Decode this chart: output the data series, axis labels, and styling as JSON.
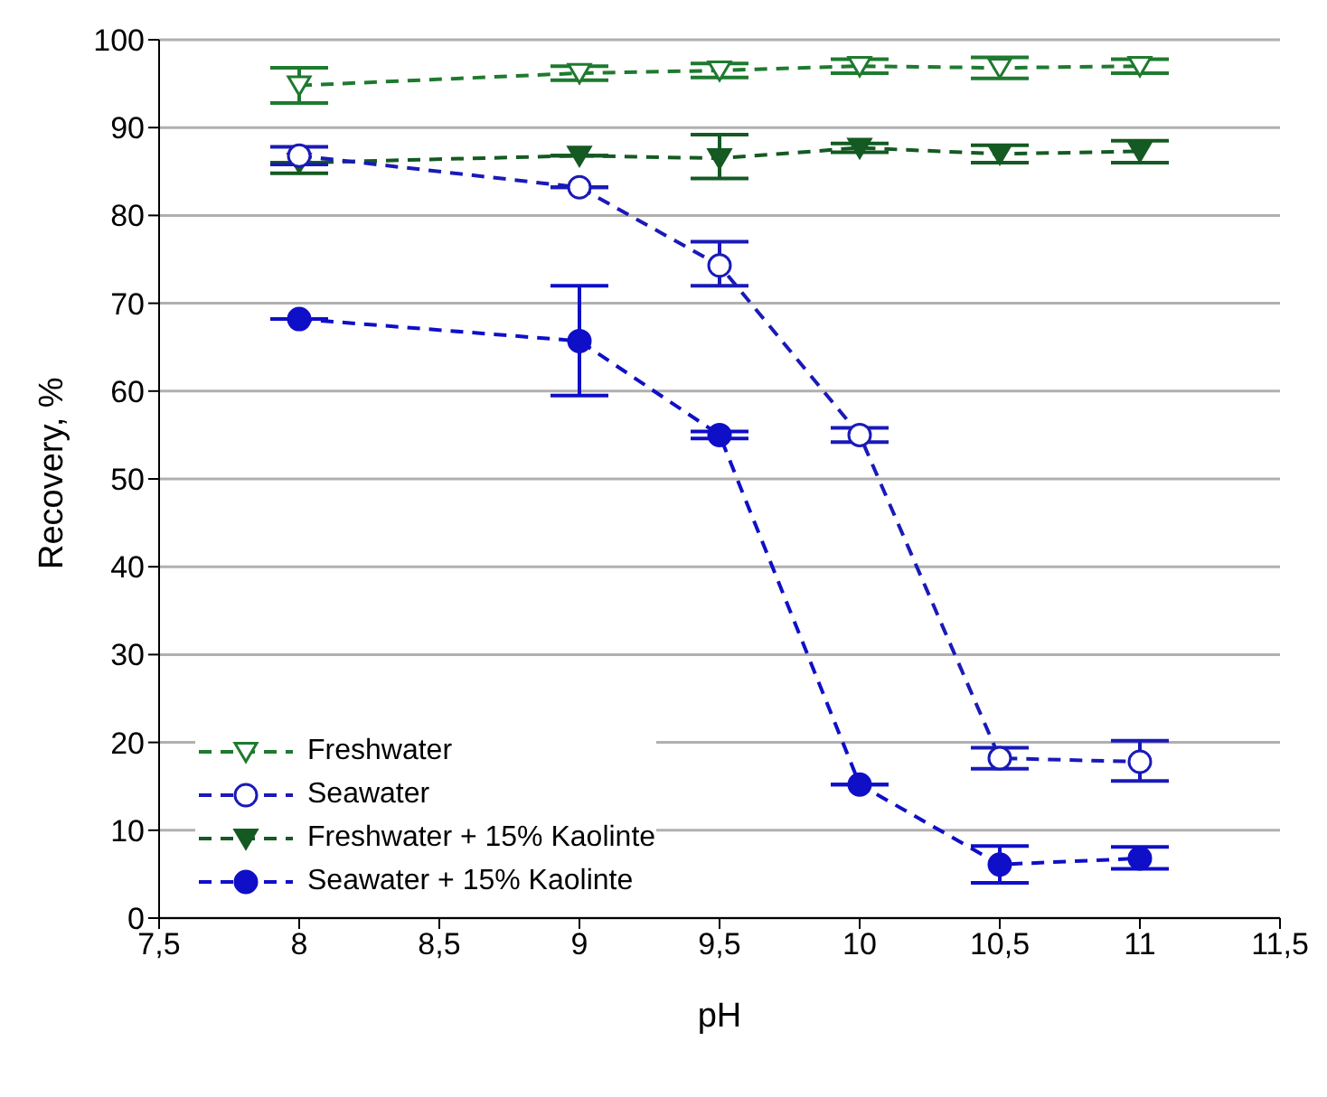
{
  "chart_data": {
    "type": "line",
    "xlabel": "pH",
    "ylabel": "Recovery, %",
    "x": [
      8,
      9,
      9.5,
      10,
      10.5,
      11
    ],
    "xlim": [
      7.5,
      11.5
    ],
    "xticks": [
      {
        "value": 7.5,
        "label": "7,5"
      },
      8,
      {
        "value": 8.5,
        "label": "8,5"
      },
      9,
      {
        "value": 9.5,
        "label": "9,5"
      },
      10,
      {
        "value": 10.5,
        "label": "10,5"
      },
      11,
      {
        "value": 11.5,
        "label": "11,5"
      }
    ],
    "ylim": [
      0,
      100
    ],
    "yticks": [
      0,
      10,
      20,
      30,
      40,
      50,
      60,
      70,
      80,
      90,
      100
    ],
    "grid": "y",
    "legend": "bottom left",
    "line_style": "dashed",
    "series": [
      {
        "name": "Freshwater",
        "color": "#1e7a2e",
        "marker": "triangle",
        "values": [
          94.8,
          96.2,
          96.5,
          97,
          96.8,
          97
        ],
        "errors": [
          2,
          0.8,
          0.8,
          0.8,
          1.2,
          0.8
        ]
      },
      {
        "name": "Seawater",
        "color": "#1a1ab8",
        "marker": "circle",
        "values": [
          86.8,
          83.2,
          74.3,
          55,
          18.2,
          17.8
        ],
        "errors": [
          1,
          null,
          [
            72,
            77
          ],
          0.8,
          1.2,
          [
            15.6,
            20.2
          ]
        ]
      },
      {
        "name": "Freshwater + 15% Kaolinte",
        "color": "#145a22",
        "marker": "triangle",
        "values": [
          86,
          86.8,
          86.5,
          87.7,
          87,
          87.3
        ],
        "errors": [
          [
            84.8,
            86
          ],
          null,
          [
            84.2,
            89.2
          ],
          0.5,
          1,
          [
            86,
            88.5
          ]
        ]
      },
      {
        "name": "Seawater + 15% Kaolinte",
        "color": "#0f0fc8",
        "marker": "circle",
        "values": [
          68.2,
          65.7,
          55,
          15.2,
          6.1,
          6.8
        ],
        "errors": [
          null,
          [
            59.5,
            72
          ],
          0.4,
          null,
          [
            4,
            8.2
          ],
          [
            5.6,
            8.1
          ]
        ]
      }
    ]
  }
}
